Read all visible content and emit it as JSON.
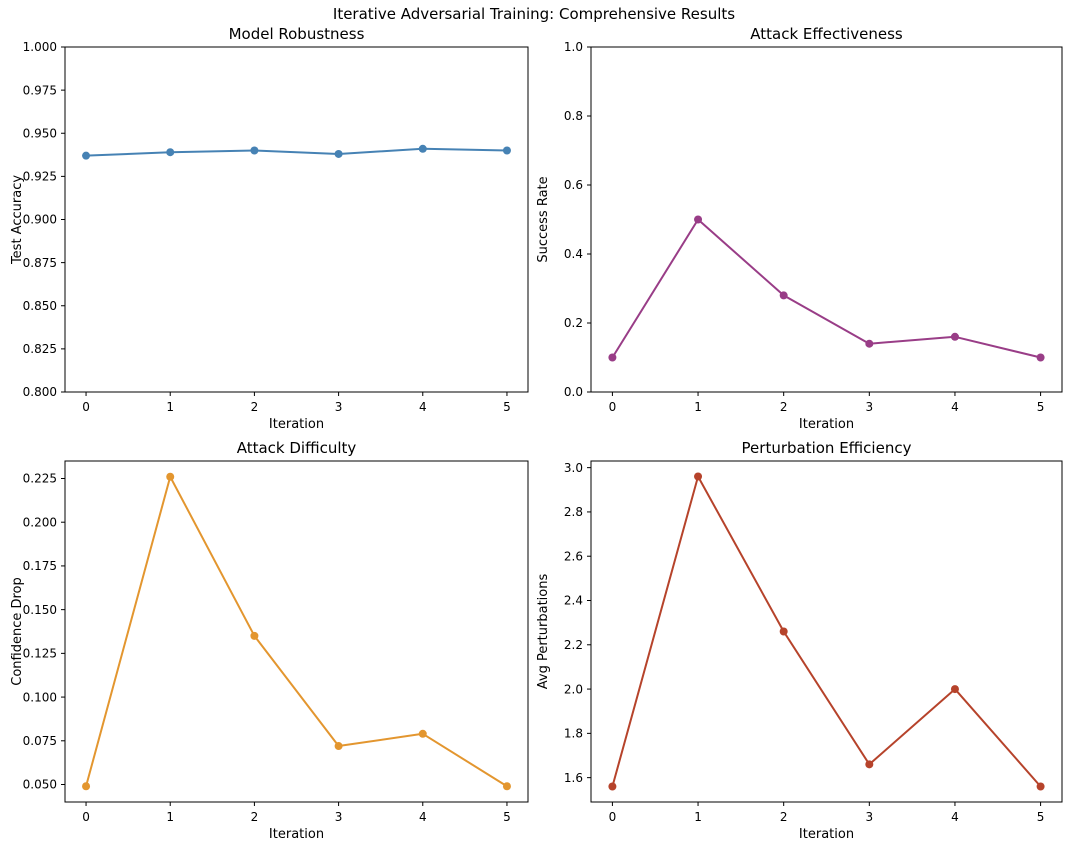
{
  "suptitle": "Iterative Adversarial Training: Comprehensive Results",
  "style": {
    "background": "#ffffff",
    "spine_color": "#000000",
    "text_color": "#000000"
  },
  "chart_data": [
    {
      "type": "line",
      "title": "Model Robustness",
      "xlabel": "Iteration",
      "ylabel": "Test Accuracy",
      "x": [
        0,
        1,
        2,
        3,
        4,
        5
      ],
      "y": [
        0.937,
        0.939,
        0.94,
        0.938,
        0.941,
        0.94
      ],
      "color": "#4682B4",
      "marker": "circle",
      "grid": false,
      "xlim": [
        -0.25,
        5.25
      ],
      "ylim": [
        0.8,
        1.0
      ],
      "xticks": [
        0,
        1,
        2,
        3,
        4,
        5
      ],
      "xticklabels": [
        "0",
        "1",
        "2",
        "3",
        "4",
        "5"
      ],
      "yticks": [
        0.8,
        0.825,
        0.85,
        0.875,
        0.9,
        0.925,
        0.95,
        0.975,
        1.0
      ],
      "yticklabels": [
        "0.800",
        "0.825",
        "0.850",
        "0.875",
        "0.900",
        "0.925",
        "0.950",
        "0.975",
        "1.000"
      ]
    },
    {
      "type": "line",
      "title": "Attack Effectiveness",
      "xlabel": "Iteration",
      "ylabel": "Success Rate",
      "x": [
        0,
        1,
        2,
        3,
        4,
        5
      ],
      "y": [
        0.1,
        0.5,
        0.28,
        0.14,
        0.16,
        0.1
      ],
      "color": "#993D87",
      "marker": "circle",
      "grid": false,
      "xlim": [
        -0.25,
        5.25
      ],
      "ylim": [
        0.0,
        1.0
      ],
      "xticks": [
        0,
        1,
        2,
        3,
        4,
        5
      ],
      "xticklabels": [
        "0",
        "1",
        "2",
        "3",
        "4",
        "5"
      ],
      "yticks": [
        0.0,
        0.2,
        0.4,
        0.6,
        0.8,
        1.0
      ],
      "yticklabels": [
        "0.0",
        "0.2",
        "0.4",
        "0.6",
        "0.8",
        "1.0"
      ]
    },
    {
      "type": "line",
      "title": "Attack Difficulty",
      "xlabel": "Iteration",
      "ylabel": "Confidence Drop",
      "x": [
        0,
        1,
        2,
        3,
        4,
        5
      ],
      "y": [
        0.049,
        0.226,
        0.135,
        0.072,
        0.079,
        0.049
      ],
      "color": "#E3962F",
      "marker": "circle",
      "grid": false,
      "xlim": [
        -0.25,
        5.25
      ],
      "ylim": [
        0.04,
        0.235
      ],
      "xticks": [
        0,
        1,
        2,
        3,
        4,
        5
      ],
      "xticklabels": [
        "0",
        "1",
        "2",
        "3",
        "4",
        "5"
      ],
      "yticks": [
        0.05,
        0.075,
        0.1,
        0.125,
        0.15,
        0.175,
        0.2,
        0.225
      ],
      "yticklabels": [
        "0.050",
        "0.075",
        "0.100",
        "0.125",
        "0.150",
        "0.175",
        "0.200",
        "0.225"
      ]
    },
    {
      "type": "line",
      "title": "Perturbation Efficiency",
      "xlabel": "Iteration",
      "ylabel": "Avg Perturbations",
      "x": [
        0,
        1,
        2,
        3,
        4,
        5
      ],
      "y": [
        1.56,
        2.96,
        2.26,
        1.66,
        2.0,
        1.56
      ],
      "color": "#B6432B",
      "marker": "circle",
      "grid": false,
      "xlim": [
        -0.25,
        5.25
      ],
      "ylim": [
        1.49,
        3.03
      ],
      "xticks": [
        0,
        1,
        2,
        3,
        4,
        5
      ],
      "xticklabels": [
        "0",
        "1",
        "2",
        "3",
        "4",
        "5"
      ],
      "yticks": [
        1.6,
        1.8,
        2.0,
        2.2,
        2.4,
        2.6,
        2.8,
        3.0
      ],
      "yticklabels": [
        "1.6",
        "1.8",
        "2.0",
        "2.2",
        "2.4",
        "2.6",
        "2.8",
        "3.0"
      ]
    }
  ]
}
